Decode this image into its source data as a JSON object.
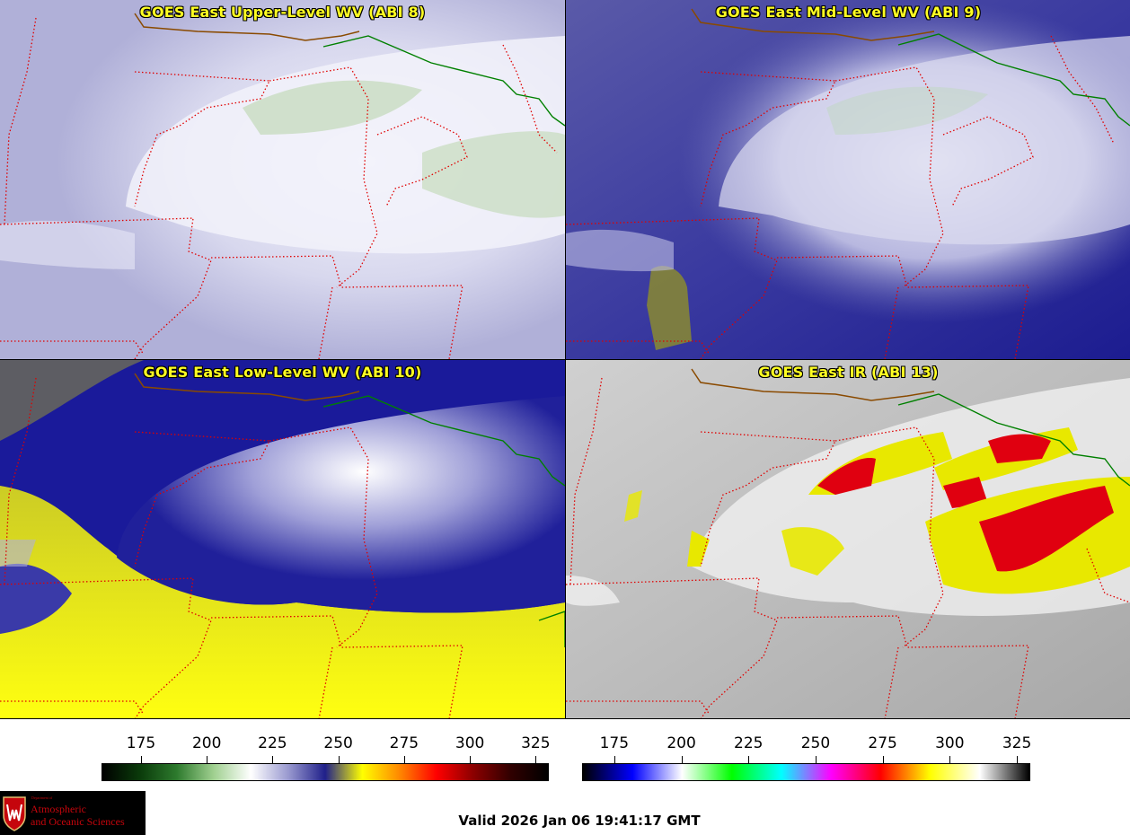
{
  "panels": [
    {
      "id": "upper",
      "title": "GOES East Upper-Level WV (ABI 8)"
    },
    {
      "id": "mid",
      "title": "GOES East Mid-Level WV (ABI 9)"
    },
    {
      "id": "low",
      "title": "GOES East Low-Level WV (ABI 10)"
    },
    {
      "id": "ir",
      "title": "GOES East IR (ABI 13)"
    }
  ],
  "colorbar_wv": {
    "ticks": [
      "175",
      "200",
      "225",
      "250",
      "275",
      "300",
      "325"
    ],
    "range": [
      160,
      330
    ],
    "colors": [
      "#000000",
      "#0a3a0a",
      "#2d7a2d",
      "#a0d090",
      "#ffffff",
      "#9a9ad0",
      "#20208a",
      "#ffff00",
      "#ff8800",
      "#ff0000",
      "#8a0000",
      "#300000",
      "#000000"
    ]
  },
  "colorbar_ir": {
    "ticks": [
      "175",
      "200",
      "225",
      "250",
      "275",
      "300",
      "325"
    ],
    "range": [
      163,
      330
    ],
    "colors": [
      "#000000",
      "#0000ff",
      "#ffffff",
      "#00ff00",
      "#00ffff",
      "#ff00ff",
      "#ff0000",
      "#ffff00",
      "#ffffff",
      "#000000"
    ]
  },
  "logo": {
    "dept": "Department of",
    "line1": "Atmospheric",
    "line2": "and Oceanic Sciences"
  },
  "valid_time": "Valid 2026 Jan 06 19:41:17 GMT"
}
